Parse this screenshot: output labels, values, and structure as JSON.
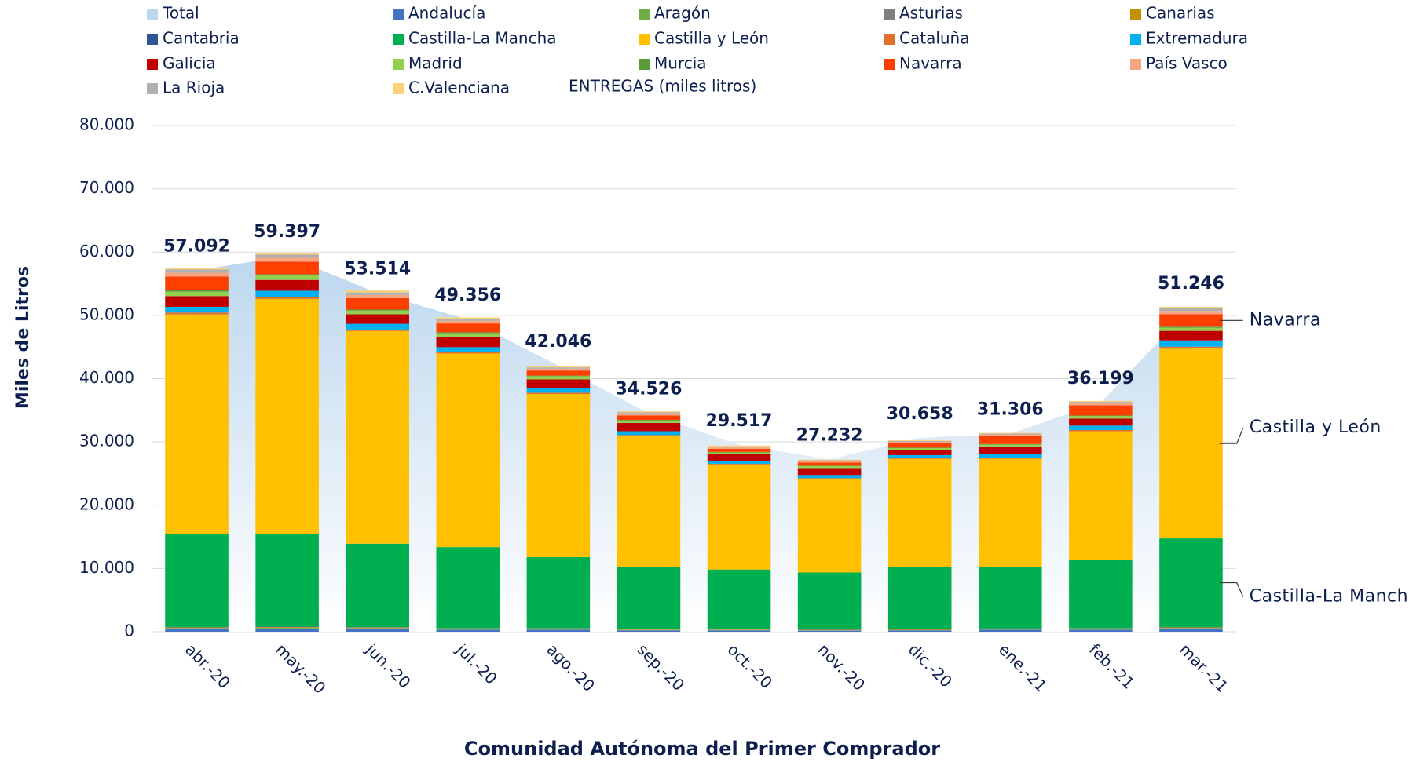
{
  "chart_data": {
    "type": "stacked_bar",
    "legend_title": "ENTREGAS (miles litros)",
    "x_label": "Comunidad Autónoma del Primer Comprador",
    "y_label": "Miles de Litros",
    "categories": [
      "abr.-20",
      "may.-20",
      "jun.-20",
      "jul.-20",
      "ago.-20",
      "sep.-20",
      "oct.-20",
      "nov.-20",
      "dic.-20",
      "ene.-21",
      "feb.-21",
      "mar.-21"
    ],
    "ylim": [
      0,
      80000
    ],
    "yticks": [
      0,
      {
        "value": 10000,
        "label": "10.000"
      },
      {
        "value": 20000,
        "label": "20.000"
      },
      {
        "value": 30000,
        "label": "30.000"
      },
      {
        "value": 40000,
        "label": "40.000"
      },
      {
        "value": 50000,
        "label": "50.000"
      },
      {
        "value": 60000,
        "label": "60.000"
      },
      {
        "value": 70000,
        "label": "70.000"
      },
      {
        "value": 80000,
        "label": "80.000"
      }
    ],
    "grid": true,
    "total": {
      "name": "Total",
      "color": "#bdd7ee",
      "values": [
        57092,
        59397,
        53514,
        49356,
        42046,
        34526,
        29517,
        27232,
        30658,
        31306,
        36199,
        51246
      ],
      "value_labels": [
        "57.092",
        "59.397",
        "53.514",
        "49.356",
        "42.046",
        "34.526",
        "29.517",
        "27.232",
        "30.658",
        "31.306",
        "36.199",
        "51.246"
      ]
    },
    "series": [
      {
        "name": "Andalucía",
        "color": "#4472c4",
        "values": [
          400,
          450,
          400,
          300,
          300,
          200,
          200,
          150,
          200,
          300,
          300,
          400
        ]
      },
      {
        "name": "Aragón",
        "color": "#70ad47",
        "values": [
          150,
          150,
          120,
          100,
          100,
          80,
          80,
          60,
          60,
          80,
          100,
          150
        ]
      },
      {
        "name": "Asturias",
        "color": "#7f7f7f",
        "values": [
          50,
          50,
          50,
          50,
          50,
          50,
          50,
          50,
          50,
          50,
          50,
          50
        ]
      },
      {
        "name": "Canarias",
        "color": "#bf9000",
        "values": [
          100,
          100,
          100,
          80,
          80,
          60,
          60,
          60,
          60,
          60,
          80,
          100
        ]
      },
      {
        "name": "Cantabria",
        "color": "#2f5597",
        "values": [
          50,
          50,
          50,
          50,
          50,
          50,
          50,
          50,
          50,
          50,
          50,
          50
        ]
      },
      {
        "name": "Castilla-La Mancha",
        "color": "#00b050",
        "values": [
          14700,
          14700,
          13200,
          12800,
          11200,
          9800,
          9400,
          9000,
          9800,
          9700,
          10800,
          14000
        ]
      },
      {
        "name": "Castilla y León",
        "color": "#ffc000",
        "values": [
          34700,
          37100,
          33600,
          30600,
          25800,
          20700,
          16600,
          14800,
          17100,
          17100,
          20300,
          30000
        ]
      },
      {
        "name": "Cataluña",
        "color": "#e0702a",
        "values": [
          300,
          300,
          250,
          200,
          200,
          150,
          100,
          100,
          100,
          150,
          200,
          300
        ]
      },
      {
        "name": "Extremadura",
        "color": "#00b0f0",
        "values": [
          900,
          1000,
          900,
          800,
          700,
          600,
          500,
          500,
          500,
          600,
          700,
          1000
        ]
      },
      {
        "name": "Galicia",
        "color": "#c00000",
        "values": [
          1700,
          1700,
          1500,
          1600,
          1400,
          1300,
          1000,
          1100,
          800,
          1200,
          1100,
          1500
        ]
      },
      {
        "name": "Madrid",
        "color": "#92d050",
        "values": [
          700,
          700,
          600,
          600,
          500,
          400,
          300,
          300,
          300,
          300,
          400,
          500
        ]
      },
      {
        "name": "Murcia",
        "color": "#5b9b3a",
        "values": [
          200,
          200,
          150,
          150,
          100,
          100,
          80,
          80,
          80,
          80,
          100,
          150
        ]
      },
      {
        "name": "Navarra",
        "color": "#ff3f00",
        "values": [
          2200,
          2000,
          1800,
          1400,
          800,
          700,
          500,
          500,
          700,
          1300,
          1600,
          2000
        ]
      },
      {
        "name": "País Vasco",
        "color": "#f4a582",
        "values": [
          600,
          600,
          500,
          400,
          300,
          300,
          200,
          200,
          200,
          200,
          300,
          500
        ]
      },
      {
        "name": "La Rioja",
        "color": "#b0b0b0",
        "values": [
          500,
          500,
          400,
          300,
          200,
          200,
          150,
          150,
          150,
          150,
          250,
          400
        ]
      },
      {
        "name": "C.Valenciana",
        "color": "#ffd07a",
        "values": [
          300,
          300,
          300,
          250,
          200,
          150,
          150,
          100,
          100,
          100,
          150,
          250
        ]
      }
    ],
    "annotations": [
      {
        "text": "Navarra",
        "series": 12
      },
      {
        "text": "Castilla y León",
        "series": 6
      },
      {
        "text": "Castilla-La Mancha",
        "series": 5
      }
    ]
  }
}
